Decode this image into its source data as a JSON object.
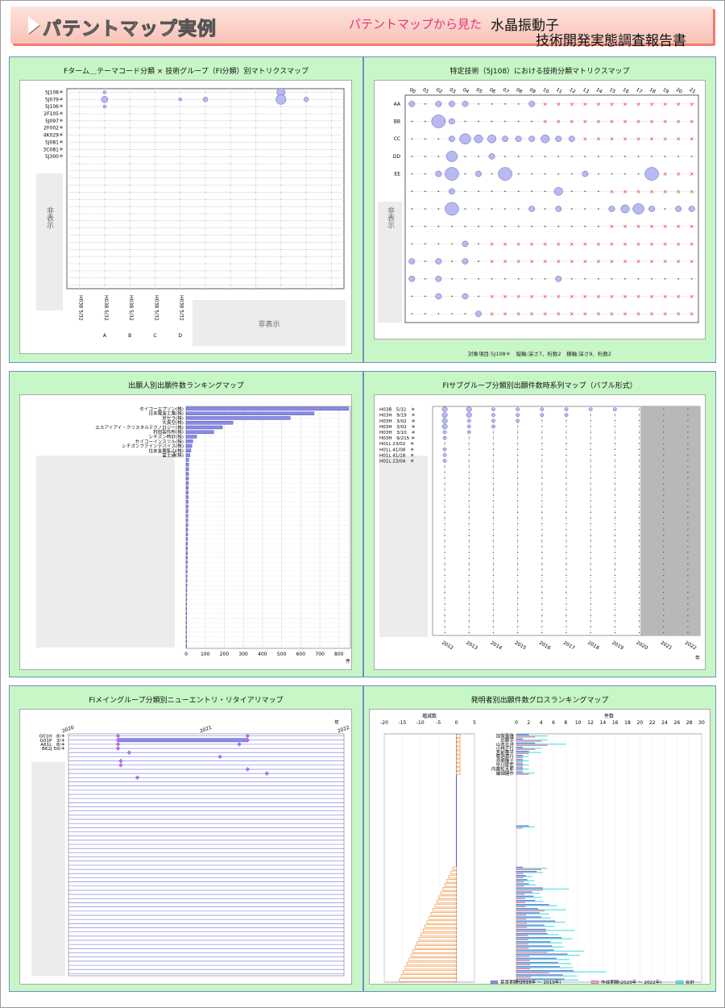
{
  "header": {
    "title": "パテントマップ実例",
    "subtitle_pink": "パテントマップから見た",
    "subtitle_line1": "水晶振動子",
    "subtitle_line2": "技術開発実態調査報告書"
  },
  "colors": {
    "panel_bg": "#c7f7c7",
    "bubble": "#b9b9f2",
    "bar_blue": "#8a8ae8",
    "bar_pink": "#f29ab8",
    "bar_cyan": "#5fe0e0",
    "bar_orange": "#f3a25a",
    "cross_red": "#e22222",
    "diamond": "#b070e8",
    "hidden_gray": "#b8b8b8"
  },
  "panels": {
    "p1": {
      "title": "Fターム＿テーマコード分類 × 技術グループ（FI分類）別マトリクスマップ"
    },
    "p2": {
      "title": "特定技術（5J108）における技術分類マトリクスマップ",
      "footnote": "対象項目:5J108＊　縦軸:深さ7、桁数2　横軸:深さ9、桁数2"
    },
    "p3": {
      "title": "出願人別出願件数ランキングマップ"
    },
    "p4": {
      "title": "FIサブグループ分類別出願件数時系列マップ（バブル形式）"
    },
    "p5": {
      "title": "FIメイングループ分類別ニューエントリ・リタイアリマップ"
    },
    "p6": {
      "title": "発明者別出願件数グロスランキングマップ"
    }
  },
  "chart_data": [
    {
      "id": "p1",
      "type": "bubble-matrix",
      "ylabels": [
        "5J108＊",
        "5J079＊",
        "5J106＊",
        "2F105＊",
        "5J097＊",
        "2F002＊",
        "4K029＊",
        "5J081＊",
        "3C081＊",
        "5J300＊"
      ],
      "xlabels": [
        "H03B 5/32",
        "H03B 5/32",
        "H03B 5/32",
        "H03B 5/32",
        "H03B 5/32"
      ],
      "xgroups": [
        "",
        "A",
        "B",
        "C",
        "D"
      ],
      "hidden_y_label": "非表示",
      "hidden_x_label": "非表示",
      "bubbles": [
        {
          "x": "col9",
          "y": "5J108＊",
          "size": 4
        },
        {
          "x": "col9",
          "y": "5J079＊",
          "size": 5
        },
        {
          "x": "A",
          "y": "5J079＊",
          "size": 3
        },
        {
          "x": "col7",
          "y": "5J079＊",
          "size": 2
        },
        {
          "x": "col10",
          "y": "5J079＊",
          "size": 2
        },
        {
          "x": "A",
          "y": "5J108＊",
          "size": 1
        },
        {
          "x": "A",
          "y": "5J106＊",
          "size": 1
        },
        {
          "x": "D",
          "y": "5J079＊",
          "size": 1
        }
      ]
    },
    {
      "id": "p2",
      "type": "bubble-matrix",
      "xlabels": [
        "00",
        "01",
        "02",
        "03",
        "04",
        "05",
        "06",
        "07",
        "08",
        "09",
        "10",
        "11",
        "12",
        "13",
        "14",
        "15",
        "16",
        "17",
        "18",
        "19",
        "20",
        "21"
      ],
      "ylabels": [
        "AA",
        "BB",
        "CC",
        "DD",
        "EE"
      ],
      "hidden_y_label": "非表示",
      "note": "bubble sizes relative; red x marks denote empty cells"
    },
    {
      "id": "p3",
      "type": "bar",
      "orientation": "horizontal",
      "categories": [
        "セイコーエプソン(株)",
        "日本電波工業(株)",
        "京セラ(株)",
        "大真空(株)",
        "エスアイアイ・クリスタルテクノロジー(株)",
        "村田製作所(株)",
        "シチズン時計(株)",
        "セイコーインスツル(株)",
        "シチズンファインデバイス(株)",
        "住友金属鉱山(株)",
        "富士通(株)"
      ],
      "values": [
        850,
        670,
        545,
        245,
        190,
        145,
        55,
        35,
        30,
        25,
        20
      ],
      "xticks": [
        0,
        100,
        200,
        300,
        400,
        500,
        600,
        700,
        800
      ],
      "xunit": "件",
      "xlim": [
        0,
        860
      ]
    },
    {
      "id": "p4",
      "type": "bubble-timeseries",
      "ylabels": [
        "H03B　5/32　＊",
        "H03H　9/19　＊",
        "H03H　3/02　＊",
        "H03H　3/02　＊",
        "H03H　3/10　＊",
        "H03H　9/215 ＊",
        "H01L 23/02　＊",
        "H01L 41/08　＊",
        "H01L 41/18　＊",
        "H01L 23/04　＊"
      ],
      "xlabels": [
        "2012",
        "2013",
        "2014",
        "2015",
        "2016",
        "2017",
        "2018",
        "2019",
        "2020",
        "2021",
        "2022"
      ],
      "xunit": "年"
    },
    {
      "id": "p5",
      "type": "entry-retire",
      "ylabels": [
        "G01H　8/＊",
        "G01P　3/＊",
        "A61L　8/＊",
        "B62J 50/＊"
      ],
      "xticks": [
        "2020",
        "2021",
        "2022"
      ],
      "xunit": "年"
    },
    {
      "id": "p6",
      "type": "bar",
      "orientation": "horizontal",
      "categories": [
        "加賀重隆",
        "近藤学",
        "山本壮洋",
        "小林正行",
        "宮前隆平",
        "菊池喜行",
        "井関隆士",
        "中川俊宏",
        "内藤松太郎",
        "磯畑健作"
      ],
      "left_axis_label": "増減数",
      "left_ticks": [
        -20,
        -15,
        -10,
        -5,
        0,
        5
      ],
      "right_axis_label": "件数",
      "right_ticks": [
        0,
        2,
        4,
        6,
        8,
        10,
        12,
        14,
        16,
        18,
        20,
        22,
        24,
        26,
        28,
        30
      ],
      "legend": [
        "基準期間(2018年 ～ 2019年)",
        "作成期間(2020年 ～ 2022年)",
        "合計"
      ]
    }
  ]
}
